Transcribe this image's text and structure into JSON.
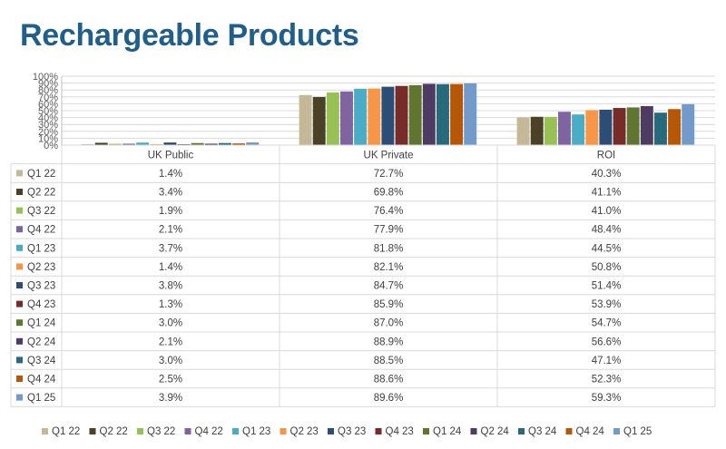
{
  "page": {
    "title": "Rechargeable Products"
  },
  "chart_data": {
    "type": "bar",
    "title": "",
    "xlabel": "",
    "ylabel": "",
    "ylim": [
      0,
      100
    ],
    "y_ticks": [
      "0%",
      "10%",
      "20%",
      "30%",
      "40%",
      "50%",
      "60%",
      "70%",
      "80%",
      "90%",
      "100%"
    ],
    "categories": [
      "UK Public",
      "UK Private",
      "ROI"
    ],
    "grid": true,
    "legend_position": "bottom",
    "data_table": true,
    "series": [
      {
        "name": "Q1 22",
        "color": "#c4b896",
        "values": [
          1.4,
          72.7,
          40.3
        ],
        "labels": [
          "1.4%",
          "72.7%",
          "40.3%"
        ]
      },
      {
        "name": "Q2 22",
        "color": "#4a4127",
        "values": [
          3.4,
          69.8,
          41.1
        ],
        "labels": [
          "3.4%",
          "69.8%",
          "41.1%"
        ]
      },
      {
        "name": "Q3 22",
        "color": "#97c155",
        "values": [
          1.9,
          76.4,
          41.0
        ],
        "labels": [
          "1.9%",
          "76.4%",
          "41.0%"
        ]
      },
      {
        "name": "Q4 22",
        "color": "#8064a2",
        "values": [
          2.1,
          77.9,
          48.4
        ],
        "labels": [
          "2.1%",
          "77.9%",
          "48.4%"
        ]
      },
      {
        "name": "Q1 23",
        "color": "#4bacc6",
        "values": [
          3.7,
          81.8,
          44.5
        ],
        "labels": [
          "3.7%",
          "81.8%",
          "44.5%"
        ]
      },
      {
        "name": "Q2 23",
        "color": "#f79646",
        "values": [
          1.4,
          82.1,
          50.8
        ],
        "labels": [
          "1.4%",
          "82.1%",
          "50.8%"
        ]
      },
      {
        "name": "Q3 23",
        "color": "#2c4d75",
        "values": [
          3.8,
          84.7,
          51.4
        ],
        "labels": [
          "3.8%",
          "84.7%",
          "51.4%"
        ]
      },
      {
        "name": "Q4 23",
        "color": "#772c2a",
        "values": [
          1.3,
          85.9,
          53.9
        ],
        "labels": [
          "1.3%",
          "85.9%",
          "53.9%"
        ]
      },
      {
        "name": "Q1 24",
        "color": "#5f7530",
        "values": [
          3.0,
          87.0,
          54.7
        ],
        "labels": [
          "3.0%",
          "87.0%",
          "54.7%"
        ]
      },
      {
        "name": "Q2 24",
        "color": "#4d3b62",
        "values": [
          2.1,
          88.9,
          56.6
        ],
        "labels": [
          "2.1%",
          "88.9%",
          "56.6%"
        ]
      },
      {
        "name": "Q3 24",
        "color": "#276a7c",
        "values": [
          3.0,
          88.5,
          47.1
        ],
        "labels": [
          "3.0%",
          "88.5%",
          "47.1%"
        ]
      },
      {
        "name": "Q4 24",
        "color": "#b65708",
        "values": [
          2.5,
          88.6,
          52.3
        ],
        "labels": [
          "2.5%",
          "88.6%",
          "52.3%"
        ]
      },
      {
        "name": "Q1 25",
        "color": "#729aca",
        "values": [
          3.9,
          89.6,
          59.3
        ],
        "labels": [
          "3.9%",
          "89.6%",
          "59.3%"
        ]
      }
    ]
  }
}
